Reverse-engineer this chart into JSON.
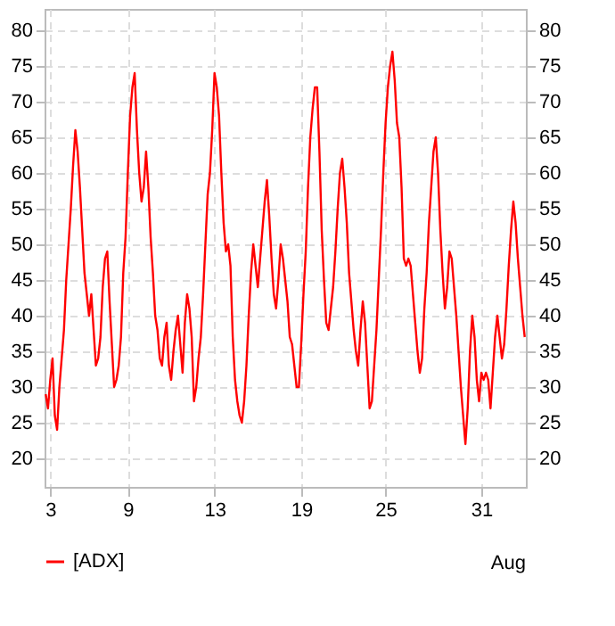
{
  "chart_data": {
    "type": "line",
    "legend": "bottom left",
    "grid": true,
    "line_style": "solid",
    "marker": "none",
    "categories": [
      null,
      null,
      "3",
      null,
      null,
      null,
      null,
      null,
      null,
      null,
      null,
      null,
      null,
      null,
      null,
      null,
      null,
      null,
      null,
      null,
      null,
      null,
      null,
      null,
      null,
      null,
      null,
      null,
      null,
      null,
      null,
      null,
      null,
      null,
      null,
      null,
      "9",
      null,
      null,
      null,
      null,
      null,
      null,
      null,
      null,
      null,
      null,
      null,
      null,
      null,
      null,
      null,
      null,
      null,
      null,
      null,
      null,
      null,
      null,
      null,
      null,
      null,
      null,
      null,
      null,
      null,
      null,
      null,
      null,
      null,
      null,
      null,
      null,
      null,
      "13",
      null,
      null,
      null,
      null,
      null,
      null,
      null,
      null,
      null,
      null,
      null,
      null,
      null,
      null,
      null,
      null,
      null,
      null,
      null,
      null,
      null,
      null,
      null,
      null,
      null,
      null,
      null,
      null,
      null,
      null,
      null,
      null,
      null,
      null,
      null,
      null,
      null,
      "19",
      null,
      null,
      null,
      null,
      null,
      null,
      null,
      null,
      null,
      null,
      null,
      null,
      null,
      null,
      null,
      null,
      null,
      null,
      null,
      null,
      null,
      null,
      null,
      null,
      null,
      null,
      null,
      null,
      null,
      null,
      null,
      null,
      null,
      null,
      null,
      null,
      "25",
      null,
      null,
      null,
      null,
      null,
      null,
      null,
      null,
      null,
      null,
      null,
      null,
      null,
      null,
      null,
      null,
      null,
      null,
      null,
      null,
      null,
      null,
      null,
      null,
      null,
      null,
      null,
      null,
      null,
      null,
      null,
      null,
      null,
      null,
      null,
      null,
      null,
      null,
      null,
      null,
      null,
      "31",
      null,
      null,
      null,
      null,
      null,
      null,
      null,
      null,
      null,
      null,
      null,
      null,
      null,
      null,
      null,
      null,
      null,
      null,
      null
    ],
    "ylim": [
      16,
      83
    ],
    "yticks": [
      20,
      25,
      30,
      35,
      40,
      45,
      50,
      55,
      60,
      65,
      70,
      75,
      80
    ],
    "y2lim": [
      16,
      83
    ],
    "y2ticks": [
      20,
      25,
      30,
      35,
      40,
      45,
      50,
      55,
      60,
      65,
      70,
      75,
      80
    ],
    "annotations": [
      "Aug"
    ],
    "series": [
      {
        "name": "[ADX]",
        "color": "#ff0000",
        "values": [
          29,
          27,
          31,
          34,
          26,
          24,
          30,
          34,
          38,
          45,
          50,
          55,
          61,
          66,
          63,
          58,
          52,
          46,
          43,
          40,
          43,
          38,
          33,
          34,
          37,
          44,
          48,
          49,
          42,
          36,
          30,
          31,
          33,
          37,
          46,
          51,
          60,
          68,
          72,
          74,
          66,
          60,
          56,
          58,
          63,
          58,
          51,
          46,
          40,
          38,
          34,
          33,
          37,
          39,
          33,
          31,
          35,
          38,
          40,
          36,
          32,
          39,
          43,
          41,
          37,
          28,
          30,
          34,
          37,
          43,
          50,
          57,
          60,
          66,
          74,
          72,
          68,
          60,
          53,
          49,
          50,
          47,
          37,
          31,
          28,
          26,
          25,
          28,
          33,
          40,
          46,
          50,
          47,
          44,
          48,
          52,
          56,
          59,
          54,
          48,
          43,
          41,
          45,
          50,
          48,
          45,
          42,
          37,
          36,
          33,
          30,
          30,
          36,
          43,
          49,
          58,
          65,
          69,
          72,
          72,
          63,
          52,
          45,
          39,
          38,
          41,
          44,
          49,
          55,
          60,
          62,
          58,
          53,
          46,
          42,
          38,
          35,
          33,
          38,
          42,
          39,
          33,
          27,
          28,
          33,
          38,
          45,
          52,
          60,
          67,
          72,
          75,
          77,
          73,
          67,
          65,
          58,
          48,
          47,
          48,
          47,
          43,
          39,
          35,
          32,
          34,
          41,
          46,
          53,
          58,
          63,
          65,
          60,
          52,
          46,
          41,
          44,
          49,
          48,
          44,
          40,
          35,
          30,
          26,
          22,
          27,
          35,
          40,
          37,
          31,
          28,
          32,
          31,
          32,
          31,
          27,
          32,
          37,
          40,
          37,
          34,
          36,
          41,
          47,
          52,
          56,
          53,
          48,
          44,
          40,
          37
        ]
      }
    ]
  }
}
